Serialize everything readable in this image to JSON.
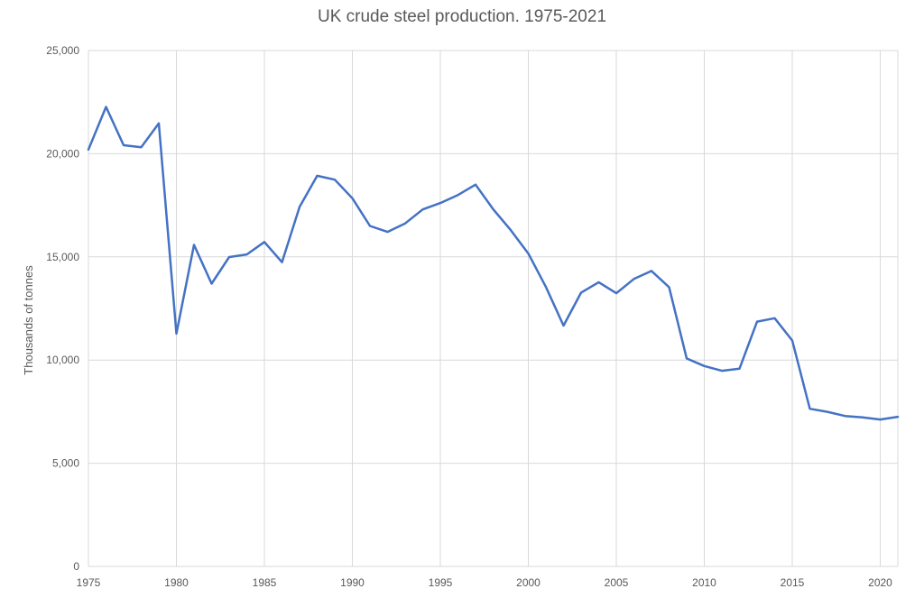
{
  "chart_data": {
    "type": "line",
    "title": "UK crude steel production. 1975-2021",
    "xlabel": "",
    "ylabel": "Thousands of tonnes",
    "xlim": [
      1975,
      2021
    ],
    "ylim": [
      0,
      25000
    ],
    "x_ticks": [
      "1975",
      "1980",
      "1985",
      "1990",
      "1995",
      "2000",
      "2005",
      "2010",
      "2015",
      "2020"
    ],
    "y_ticks": [
      "0",
      "5,000",
      "10,000",
      "15,000",
      "20,000",
      "25,000"
    ],
    "grid": true,
    "legend": "none",
    "series": [
      {
        "color": "#4472c4",
        "x": [
          1975,
          1976,
          1977,
          1978,
          1979,
          1980,
          1981,
          1982,
          1983,
          1984,
          1985,
          1986,
          1987,
          1988,
          1989,
          1990,
          1991,
          1992,
          1993,
          1994,
          1995,
          1996,
          1997,
          1998,
          1999,
          2000,
          2001,
          2002,
          2003,
          2004,
          2005,
          2006,
          2007,
          2008,
          2009,
          2010,
          2011,
          2012,
          2013,
          2014,
          2015,
          2016,
          2017,
          2018,
          2019,
          2020,
          2021
        ],
        "values": [
          20200,
          22270,
          20410,
          20310,
          21470,
          11280,
          15580,
          13700,
          14990,
          15120,
          15720,
          14740,
          17420,
          18930,
          18740,
          17840,
          16500,
          16210,
          16620,
          17300,
          17610,
          18000,
          18500,
          17310,
          16300,
          15160,
          13540,
          11670,
          13270,
          13770,
          13240,
          13930,
          14320,
          13530,
          10080,
          9710,
          9480,
          9580,
          11860,
          12030,
          10950,
          7640,
          7490,
          7290,
          7220,
          7120,
          7250
        ]
      }
    ]
  }
}
